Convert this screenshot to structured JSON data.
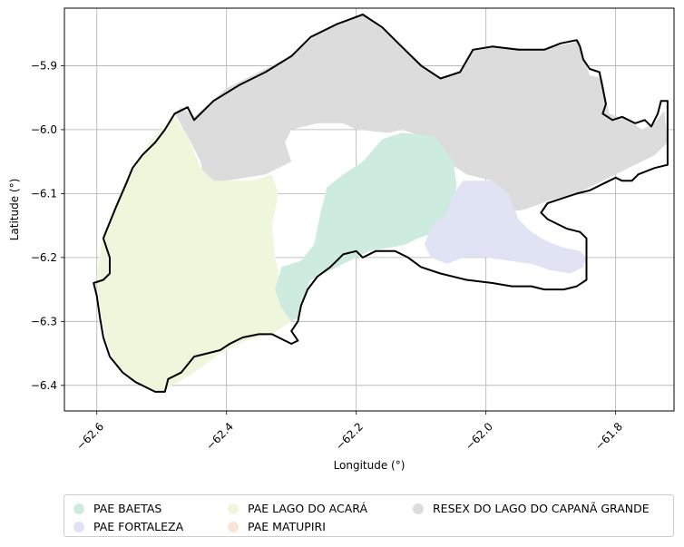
{
  "chart_data": {
    "type": "map",
    "xlabel": "Longitude (°)",
    "ylabel": "Latitude (°)",
    "xlim": [
      -62.65,
      -61.71
    ],
    "ylim": [
      -6.44,
      -5.81
    ],
    "xticks": [
      -62.6,
      -62.4,
      -62.2,
      -62.0,
      -61.8
    ],
    "xtick_labels": [
      "−62.6",
      "−62.4",
      "−62.2",
      "−62.0",
      "−61.8"
    ],
    "yticks": [
      -5.9,
      -6.0,
      -6.1,
      -6.2,
      -6.3,
      -6.4
    ],
    "ytick_labels": [
      "−5.9",
      "−6.0",
      "−6.1",
      "−6.2",
      "−6.3",
      "−6.4"
    ],
    "grid": true,
    "legend_position": "bottom",
    "regions": [
      {
        "name": "PAE BAETAS",
        "color": "#cdebde",
        "polygon": [
          [
            -62.13,
            -6.005
          ],
          [
            -62.08,
            -6.01
          ],
          [
            -62.065,
            -6.03
          ],
          [
            -62.05,
            -6.05
          ],
          [
            -62.045,
            -6.09
          ],
          [
            -62.06,
            -6.13
          ],
          [
            -62.075,
            -6.16
          ],
          [
            -62.105,
            -6.17
          ],
          [
            -62.125,
            -6.18
          ],
          [
            -62.15,
            -6.185
          ],
          [
            -62.18,
            -6.19
          ],
          [
            -62.2,
            -6.2
          ],
          [
            -62.24,
            -6.22
          ],
          [
            -62.27,
            -6.235
          ],
          [
            -62.285,
            -6.27
          ],
          [
            -62.29,
            -6.295
          ],
          [
            -62.3,
            -6.3
          ],
          [
            -62.315,
            -6.28
          ],
          [
            -62.325,
            -6.25
          ],
          [
            -62.315,
            -6.215
          ],
          [
            -62.285,
            -6.205
          ],
          [
            -62.265,
            -6.18
          ],
          [
            -62.255,
            -6.13
          ],
          [
            -62.245,
            -6.09
          ],
          [
            -62.22,
            -6.07
          ],
          [
            -62.19,
            -6.05
          ],
          [
            -62.16,
            -6.015
          ]
        ]
      },
      {
        "name": "PAE FORTALEZA",
        "color": "#dfe3f3",
        "polygon": [
          [
            -62.035,
            -6.08
          ],
          [
            -61.99,
            -6.08
          ],
          [
            -61.965,
            -6.1
          ],
          [
            -61.95,
            -6.14
          ],
          [
            -61.93,
            -6.16
          ],
          [
            -61.905,
            -6.175
          ],
          [
            -61.88,
            -6.185
          ],
          [
            -61.855,
            -6.19
          ],
          [
            -61.845,
            -6.2
          ],
          [
            -61.85,
            -6.215
          ],
          [
            -61.87,
            -6.225
          ],
          [
            -61.9,
            -6.22
          ],
          [
            -61.93,
            -6.21
          ],
          [
            -61.965,
            -6.205
          ],
          [
            -62.0,
            -6.2
          ],
          [
            -62.035,
            -6.2
          ],
          [
            -62.06,
            -6.21
          ],
          [
            -62.085,
            -6.2
          ],
          [
            -62.095,
            -6.18
          ],
          [
            -62.085,
            -6.155
          ],
          [
            -62.06,
            -6.13
          ],
          [
            -62.05,
            -6.1
          ]
        ]
      },
      {
        "name": "PAE LAGO DO ACARÁ",
        "color": "#eef7dc",
        "polygon": [
          [
            -62.48,
            -5.98
          ],
          [
            -62.52,
            -6.02
          ],
          [
            -62.56,
            -6.09
          ],
          [
            -62.59,
            -6.16
          ],
          [
            -62.6,
            -6.23
          ],
          [
            -62.595,
            -6.28
          ],
          [
            -62.585,
            -6.33
          ],
          [
            -62.57,
            -6.37
          ],
          [
            -62.53,
            -6.4
          ],
          [
            -62.5,
            -6.41
          ],
          [
            -62.45,
            -6.38
          ],
          [
            -62.41,
            -6.35
          ],
          [
            -62.37,
            -6.33
          ],
          [
            -62.33,
            -6.32
          ],
          [
            -62.3,
            -6.3
          ],
          [
            -62.315,
            -6.25
          ],
          [
            -62.325,
            -6.2
          ],
          [
            -62.33,
            -6.15
          ],
          [
            -62.32,
            -6.1
          ],
          [
            -62.33,
            -6.07
          ],
          [
            -62.36,
            -6.08
          ],
          [
            -62.39,
            -6.08
          ],
          [
            -62.42,
            -6.08
          ],
          [
            -62.44,
            -6.06
          ],
          [
            -62.46,
            -6.01
          ]
        ]
      },
      {
        "name": "PAE MATUPIRI",
        "color": "#f7e6d6",
        "polygon": []
      },
      {
        "name": "RESEX DO LAGO DO CAPANÃ GRANDE",
        "color": "#dcdcdc",
        "polygon": [
          [
            -62.48,
            -5.975
          ],
          [
            -62.47,
            -5.965
          ],
          [
            -62.45,
            -5.98
          ],
          [
            -62.4,
            -5.935
          ],
          [
            -62.35,
            -5.91
          ],
          [
            -62.3,
            -5.885
          ],
          [
            -62.26,
            -5.85
          ],
          [
            -62.22,
            -5.83
          ],
          [
            -62.19,
            -5.82
          ],
          [
            -62.15,
            -5.85
          ],
          [
            -62.11,
            -5.89
          ],
          [
            -62.07,
            -5.92
          ],
          [
            -62.04,
            -5.91
          ],
          [
            -62.02,
            -5.875
          ],
          [
            -61.98,
            -5.87
          ],
          [
            -61.92,
            -5.875
          ],
          [
            -61.87,
            -5.865
          ],
          [
            -61.855,
            -5.86
          ],
          [
            -61.85,
            -5.885
          ],
          [
            -61.84,
            -5.915
          ],
          [
            -61.82,
            -5.92
          ],
          [
            -61.815,
            -5.95
          ],
          [
            -61.81,
            -5.975
          ],
          [
            -61.78,
            -5.985
          ],
          [
            -61.76,
            -6.0
          ],
          [
            -61.74,
            -5.99
          ],
          [
            -61.725,
            -5.97
          ],
          [
            -61.72,
            -6.02
          ],
          [
            -61.74,
            -6.04
          ],
          [
            -61.8,
            -6.07
          ],
          [
            -61.86,
            -6.1
          ],
          [
            -61.9,
            -6.11
          ],
          [
            -61.94,
            -6.125
          ],
          [
            -61.975,
            -6.13
          ],
          [
            -61.99,
            -6.08
          ],
          [
            -62.03,
            -6.07
          ],
          [
            -62.06,
            -6.05
          ],
          [
            -62.08,
            -6.02
          ],
          [
            -62.1,
            -6.01
          ],
          [
            -62.13,
            -6.0
          ],
          [
            -62.15,
            -6.005
          ],
          [
            -62.2,
            -6.0
          ],
          [
            -62.22,
            -5.99
          ],
          [
            -62.26,
            -5.99
          ],
          [
            -62.3,
            -6.0
          ],
          [
            -62.31,
            -6.02
          ],
          [
            -62.3,
            -6.05
          ],
          [
            -62.32,
            -6.06
          ],
          [
            -62.34,
            -6.07
          ],
          [
            -62.37,
            -6.075
          ],
          [
            -62.4,
            -6.08
          ],
          [
            -62.43,
            -6.1
          ],
          [
            -62.44,
            -6.05
          ],
          [
            -62.46,
            -6.01
          ]
        ]
      }
    ],
    "outline": [
      [
        -62.48,
        -5.975
      ],
      [
        -62.46,
        -5.965
      ],
      [
        -62.45,
        -5.985
      ],
      [
        -62.42,
        -5.955
      ],
      [
        -62.38,
        -5.93
      ],
      [
        -62.34,
        -5.91
      ],
      [
        -62.3,
        -5.885
      ],
      [
        -62.27,
        -5.855
      ],
      [
        -62.23,
        -5.835
      ],
      [
        -62.19,
        -5.82
      ],
      [
        -62.16,
        -5.84
      ],
      [
        -62.13,
        -5.87
      ],
      [
        -62.1,
        -5.9
      ],
      [
        -62.07,
        -5.92
      ],
      [
        -62.04,
        -5.91
      ],
      [
        -62.02,
        -5.875
      ],
      [
        -61.99,
        -5.87
      ],
      [
        -61.95,
        -5.875
      ],
      [
        -61.91,
        -5.875
      ],
      [
        -61.885,
        -5.865
      ],
      [
        -61.86,
        -5.86
      ],
      [
        -61.855,
        -5.87
      ],
      [
        -61.85,
        -5.89
      ],
      [
        -61.84,
        -5.905
      ],
      [
        -61.825,
        -5.91
      ],
      [
        -61.82,
        -5.935
      ],
      [
        -61.815,
        -5.96
      ],
      [
        -61.82,
        -5.975
      ],
      [
        -61.805,
        -5.985
      ],
      [
        -61.79,
        -5.98
      ],
      [
        -61.77,
        -5.99
      ],
      [
        -61.755,
        -5.985
      ],
      [
        -61.745,
        -5.995
      ],
      [
        -61.735,
        -5.975
      ],
      [
        -61.73,
        -5.955
      ],
      [
        -61.72,
        -5.955
      ],
      [
        -61.72,
        -5.97
      ],
      [
        -61.72,
        -6.05
      ],
      [
        -61.72,
        -6.055
      ],
      [
        -61.74,
        -6.06
      ],
      [
        -61.765,
        -6.07
      ],
      [
        -61.775,
        -6.08
      ],
      [
        -61.79,
        -6.08
      ],
      [
        -61.8,
        -6.075
      ],
      [
        -61.82,
        -6.085
      ],
      [
        -61.84,
        -6.095
      ],
      [
        -61.86,
        -6.1
      ],
      [
        -61.89,
        -6.11
      ],
      [
        -61.905,
        -6.115
      ],
      [
        -61.915,
        -6.13
      ],
      [
        -61.905,
        -6.14
      ],
      [
        -61.875,
        -6.155
      ],
      [
        -61.855,
        -6.16
      ],
      [
        -61.845,
        -6.17
      ],
      [
        -61.845,
        -6.205
      ],
      [
        -61.845,
        -6.235
      ],
      [
        -61.86,
        -6.245
      ],
      [
        -61.88,
        -6.25
      ],
      [
        -61.91,
        -6.25
      ],
      [
        -61.93,
        -6.245
      ],
      [
        -61.96,
        -6.245
      ],
      [
        -61.99,
        -6.24
      ],
      [
        -62.03,
        -6.235
      ],
      [
        -62.07,
        -6.225
      ],
      [
        -62.1,
        -6.215
      ],
      [
        -62.12,
        -6.2
      ],
      [
        -62.14,
        -6.19
      ],
      [
        -62.17,
        -6.19
      ],
      [
        -62.19,
        -6.2
      ],
      [
        -62.2,
        -6.19
      ],
      [
        -62.22,
        -6.195
      ],
      [
        -62.24,
        -6.215
      ],
      [
        -62.26,
        -6.23
      ],
      [
        -62.275,
        -6.25
      ],
      [
        -62.285,
        -6.275
      ],
      [
        -62.29,
        -6.3
      ],
      [
        -62.3,
        -6.315
      ],
      [
        -62.29,
        -6.33
      ],
      [
        -62.3,
        -6.335
      ],
      [
        -62.31,
        -6.33
      ],
      [
        -62.33,
        -6.32
      ],
      [
        -62.35,
        -6.32
      ],
      [
        -62.375,
        -6.325
      ],
      [
        -62.395,
        -6.335
      ],
      [
        -62.41,
        -6.345
      ],
      [
        -62.43,
        -6.35
      ],
      [
        -62.45,
        -6.355
      ],
      [
        -62.47,
        -6.38
      ],
      [
        -62.49,
        -6.39
      ],
      [
        -62.495,
        -6.41
      ],
      [
        -62.51,
        -6.41
      ],
      [
        -62.54,
        -6.395
      ],
      [
        -62.56,
        -6.38
      ],
      [
        -62.58,
        -6.355
      ],
      [
        -62.59,
        -6.325
      ],
      [
        -62.595,
        -6.295
      ],
      [
        -62.6,
        -6.26
      ],
      [
        -62.605,
        -6.24
      ],
      [
        -62.59,
        -6.235
      ],
      [
        -62.58,
        -6.225
      ],
      [
        -62.58,
        -6.2
      ],
      [
        -62.59,
        -6.17
      ],
      [
        -62.57,
        -6.12
      ],
      [
        -62.555,
        -6.085
      ],
      [
        -62.545,
        -6.06
      ],
      [
        -62.53,
        -6.04
      ],
      [
        -62.51,
        -6.02
      ],
      [
        -62.495,
        -6.0
      ],
      [
        -62.48,
        -5.975
      ]
    ]
  }
}
